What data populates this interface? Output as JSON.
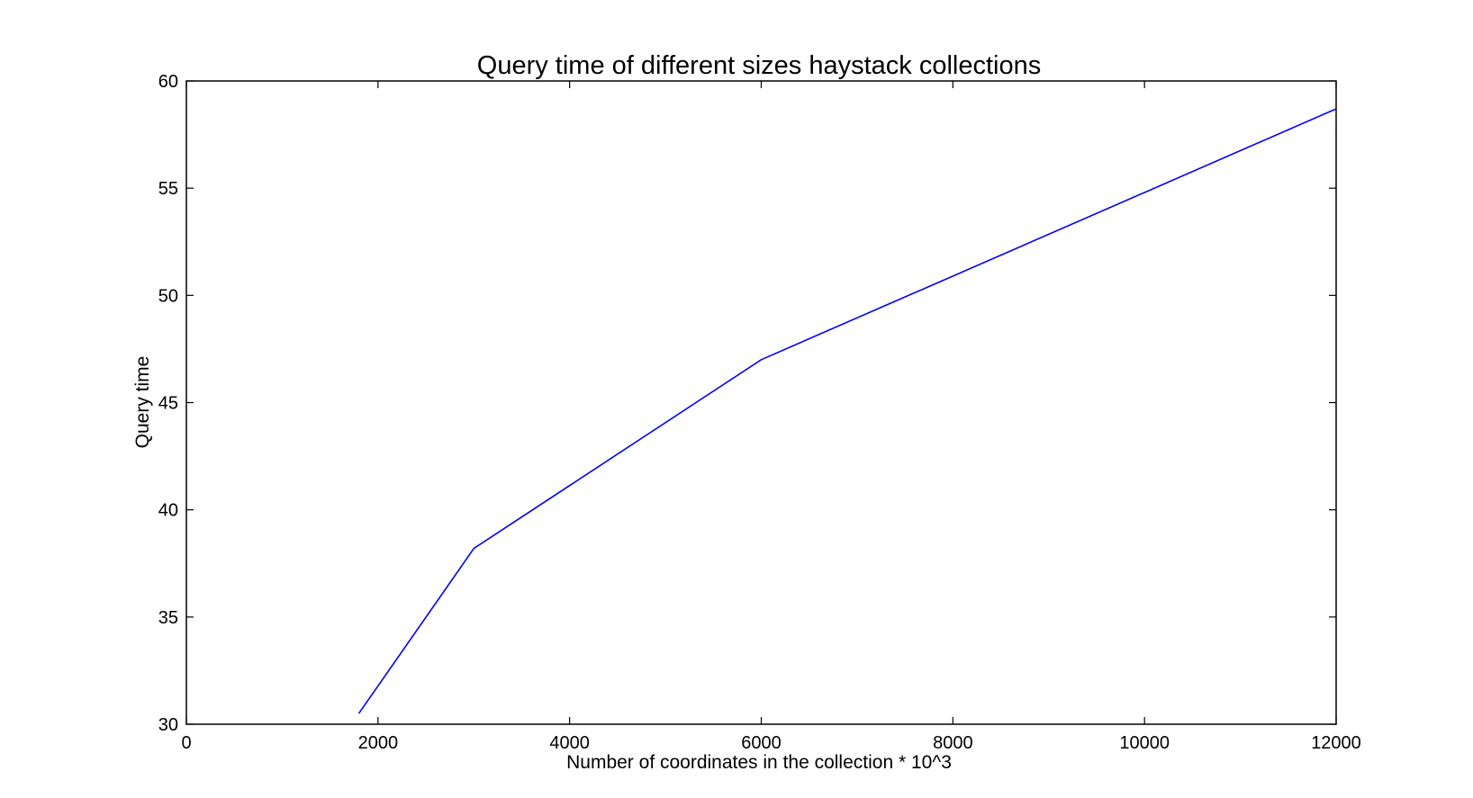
{
  "chart_data": {
    "type": "line",
    "title": "Query time of different sizes haystack collections",
    "xlabel": "Number of coordinates in the collection * 10^3",
    "ylabel": "Query time",
    "xlim": [
      0,
      12000
    ],
    "ylim": [
      30,
      60
    ],
    "x_ticks": [
      "0",
      "2000",
      "4000",
      "6000",
      "8000",
      "10000",
      "12000"
    ],
    "y_ticks": [
      "30",
      "35",
      "40",
      "45",
      "50",
      "55",
      "60"
    ],
    "grid": false,
    "legend": "none",
    "series": [
      {
        "color": "#0000ff",
        "x": [
          1800,
          3000,
          6000,
          12000
        ],
        "y": [
          30.5,
          38.2,
          47.0,
          58.7
        ]
      }
    ]
  }
}
